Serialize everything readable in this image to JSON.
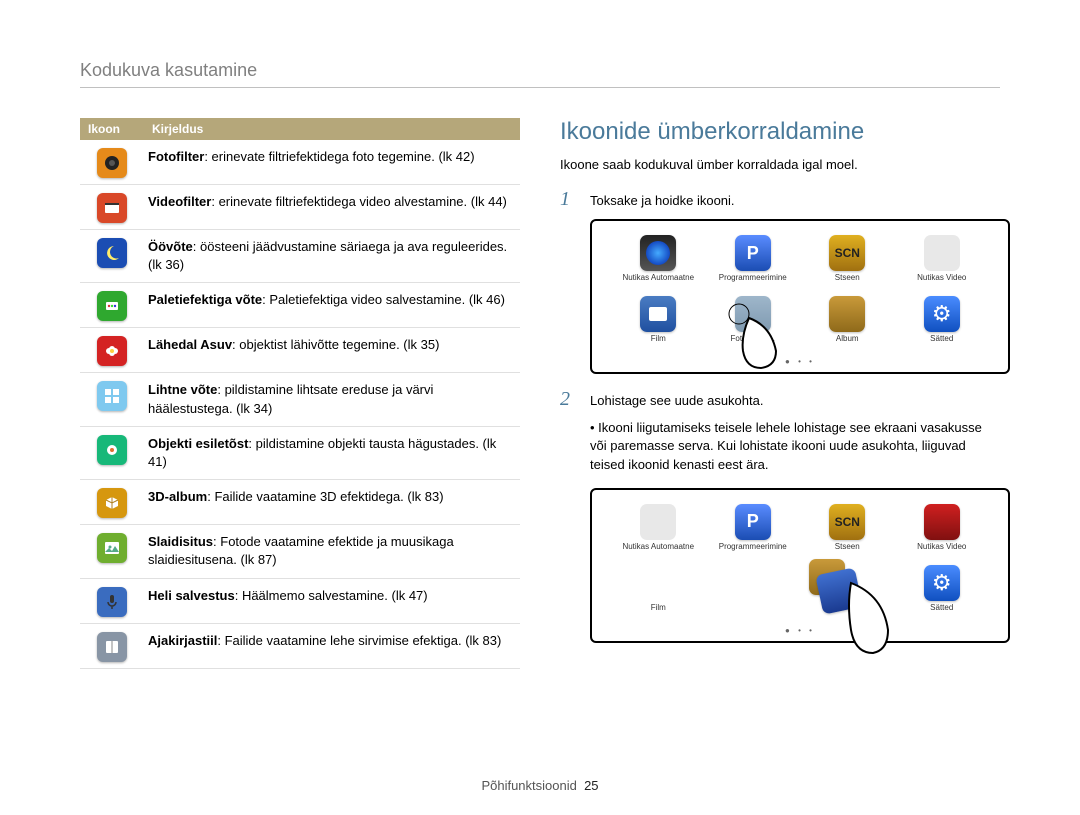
{
  "header": "Kodukuva kasutamine",
  "footer": {
    "label": "Põhifunktsioonid",
    "page": "25"
  },
  "table": {
    "headers": {
      "icon": "Ikoon",
      "desc": "Kirjeldus"
    },
    "rows": [
      {
        "icon": {
          "bg": "#e58a1a",
          "type": "lens-dark"
        },
        "bold": "Fotofilter",
        "text": ": erinevate filtriefektidega foto tegemine. (lk 42)"
      },
      {
        "icon": {
          "bg": "#d94828",
          "type": "film"
        },
        "bold": "Videofilter",
        "text": ": erinevate filtriefektidega video alvestamine. (lk 44)"
      },
      {
        "icon": {
          "bg": "#1b4db3",
          "type": "moon"
        },
        "bold": "Öövõte",
        "text": ": öösteeni jäädvustamine säriaega ja ava reguleerides. (lk 36)"
      },
      {
        "icon": {
          "bg": "#2fa82f",
          "type": "palette"
        },
        "bold": "Paletiefektiga võte",
        "text": ": Paletiefektiga video salvestamine. (lk 46)"
      },
      {
        "icon": {
          "bg": "#d42323",
          "type": "flower"
        },
        "bold": "Lähedal Asuv",
        "text": ": objektist lähivõtte tegemine. (lk 35)"
      },
      {
        "icon": {
          "bg": "#7fc9ef",
          "type": "grid"
        },
        "bold": "Lihtne võte",
        "text": ": pildistamine lihtsate ereduse ja värvi häälestustega. (lk 34)"
      },
      {
        "icon": {
          "bg": "#17b879",
          "type": "dot"
        },
        "bold": "Objekti esiletõst",
        "text": ": pildistamine objekti tausta hägustades. (lk 41)"
      },
      {
        "icon": {
          "bg": "#d6970f",
          "type": "cube"
        },
        "bold": "3D-album",
        "text": ": Failide vaatamine 3D efektidega. (lk 83)"
      },
      {
        "icon": {
          "bg": "#6fae2f",
          "type": "photo"
        },
        "bold": "Slaidisitus",
        "text": ": Fotode vaatamine efektide ja muusikaga slaidiesitusena. (lk 87)"
      },
      {
        "icon": {
          "bg": "#3a6cbf",
          "type": "mic"
        },
        "bold": "Heli salvestus",
        "text": ": Häälmemo salvestamine. (lk 47)"
      },
      {
        "icon": {
          "bg": "#8895a5",
          "type": "book"
        },
        "bold": "Ajakirjastiil",
        "text": ": Failide vaatamine lehe sirvimise efektiga. (lk 83)"
      }
    ]
  },
  "right": {
    "title": "Ikoonide ümberkorraldamine",
    "subtitle": "Ikoone saab kodukuval ümber korraldada igal moel.",
    "step1": {
      "num": "1",
      "text": "Toksake ja hoidke ikooni."
    },
    "step2": {
      "num": "2",
      "text": "Lohistage see uude asukohta."
    },
    "bullet": "Ikooni liigutamiseks teisele lehele lohistage see ekraani vasakusse või paremasse serva. Kui lohistate ikooni uude asukohta, liiguvad teised ikoonid kenasti eest ära.",
    "grid_labels": {
      "auto": "Nutikas Automaatne",
      "prog": "Programmeerimine",
      "scn": "Stseen",
      "svid": "Nutikas Video",
      "film": "Film",
      "frame": "Fototoimet...",
      "album": "Album",
      "settings": "Sätted"
    }
  }
}
